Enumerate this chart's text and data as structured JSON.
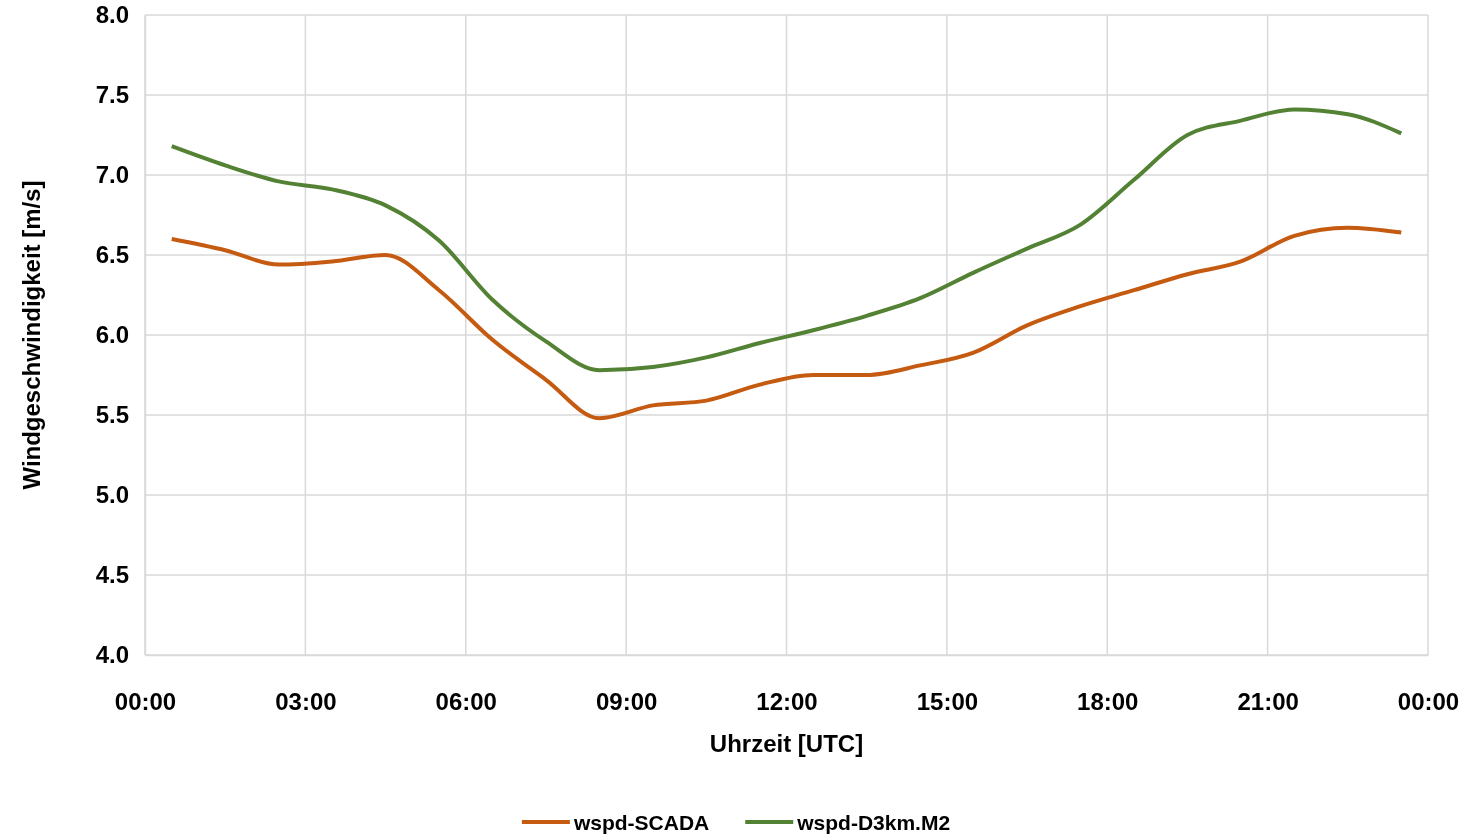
{
  "chart_data": {
    "type": "line",
    "xlabel": "Uhrzeit [UTC]",
    "ylabel": "Windgeschwindigkeit [m/s]",
    "x": [
      0.5,
      1.5,
      2.5,
      3.5,
      4.5,
      5.5,
      6.5,
      7.5,
      8.5,
      9.5,
      10.5,
      11.5,
      12.5,
      13.5,
      14.5,
      15.5,
      16.5,
      17.5,
      18.5,
      19.5,
      20.5,
      21.5,
      22.5,
      23.5
    ],
    "series": [
      {
        "name": "wspd-SCADA",
        "color": "#c55a11",
        "values": [
          6.6,
          6.53,
          6.44,
          6.46,
          6.5,
          6.28,
          5.97,
          5.72,
          5.48,
          5.56,
          5.59,
          5.69,
          5.75,
          5.75,
          5.81,
          5.89,
          6.06,
          6.18,
          6.28,
          6.38,
          6.46,
          6.62,
          6.67,
          6.64
        ]
      },
      {
        "name": "wspd-D3km.M2",
        "color": "#548235",
        "values": [
          7.18,
          7.06,
          6.96,
          6.91,
          6.81,
          6.59,
          6.22,
          5.96,
          5.78,
          5.8,
          5.86,
          5.95,
          6.03,
          6.12,
          6.23,
          6.39,
          6.54,
          6.69,
          6.97,
          7.25,
          7.34,
          7.41,
          7.38,
          7.26
        ]
      }
    ],
    "xlim": [
      0,
      24
    ],
    "xticks": [
      {
        "value": 0,
        "label": "00:00"
      },
      {
        "value": 3,
        "label": "03:00"
      },
      {
        "value": 6,
        "label": "06:00"
      },
      {
        "value": 9,
        "label": "09:00"
      },
      {
        "value": 12,
        "label": "12:00"
      },
      {
        "value": 15,
        "label": "15:00"
      },
      {
        "value": 18,
        "label": "18:00"
      },
      {
        "value": 21,
        "label": "21:00"
      },
      {
        "value": 24,
        "label": "00:00"
      }
    ],
    "ylim": [
      4,
      8
    ],
    "yticks": [
      {
        "value": 4,
        "label": "4.0"
      },
      {
        "value": 4.5,
        "label": "4.5"
      },
      {
        "value": 5,
        "label": "5.0"
      },
      {
        "value": 5.5,
        "label": "5.5"
      },
      {
        "value": 6,
        "label": "6.0"
      },
      {
        "value": 6.5,
        "label": "6.5"
      },
      {
        "value": 7,
        "label": "7.0"
      },
      {
        "value": 7.5,
        "label": "7.5"
      },
      {
        "value": 8,
        "label": "8.0"
      }
    ],
    "grid": true,
    "legend": "bottom",
    "marker": "none",
    "line_style": "solid"
  }
}
